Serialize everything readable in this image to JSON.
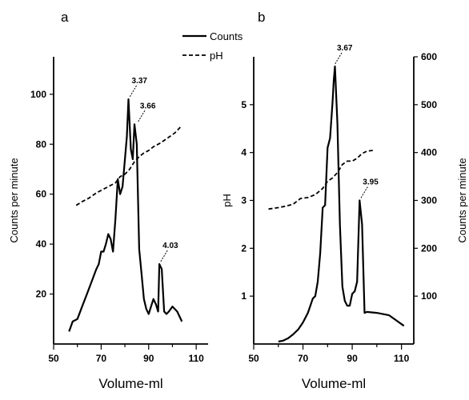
{
  "legend": {
    "entries": [
      {
        "label": "Counts",
        "style": "solid"
      },
      {
        "label": "pH",
        "style": "dashed"
      }
    ]
  },
  "chart_data": [
    {
      "panel": "a",
      "type": "line",
      "xlabel": "Volume-ml",
      "ylabel": "Counts per minute",
      "xlim": [
        50,
        115
      ],
      "ylim": [
        0,
        115
      ],
      "xticks": [
        50,
        70,
        90,
        110
      ],
      "yticks": [
        20,
        40,
        60,
        80,
        100
      ],
      "series": [
        {
          "name": "Counts",
          "axis": "left",
          "style": "solid",
          "x": [
            56.5,
            58,
            60,
            62,
            64,
            66,
            68,
            69,
            70,
            71,
            72,
            73,
            74,
            75,
            76,
            77,
            78,
            79,
            80,
            80.8,
            81.5,
            82.5,
            83.3,
            84,
            85,
            86,
            87,
            88,
            89,
            90,
            91,
            92,
            93,
            94,
            94.5,
            95.5,
            96.5,
            97.5,
            98.5,
            100,
            102,
            104
          ],
          "y": [
            5,
            9,
            10,
            15,
            20,
            25,
            30,
            32,
            37,
            37,
            40,
            44,
            42,
            37,
            50,
            66,
            60,
            63,
            74,
            83,
            98,
            78,
            74,
            88,
            80,
            38,
            28,
            18,
            14,
            12,
            15,
            18,
            16,
            13,
            32,
            30,
            13,
            12,
            13,
            15,
            13,
            9
          ]
        },
        {
          "name": "pH",
          "axis": "left",
          "style": "dashed",
          "x": [
            59.5,
            62,
            65,
            68,
            70,
            73,
            76,
            78,
            80,
            82,
            84,
            86,
            88,
            90,
            92,
            95,
            98,
            101,
            104
          ],
          "y": [
            55.5,
            57,
            58.5,
            60.5,
            61.5,
            63,
            64.5,
            67,
            68,
            70,
            73,
            75,
            76.5,
            77.5,
            79,
            80.5,
            82.5,
            84.5,
            87.5
          ]
        }
      ],
      "annotations": [
        {
          "text": "3.37",
          "x": 81.5,
          "y": 98
        },
        {
          "text": "3.66",
          "x": 85,
          "y": 88
        },
        {
          "text": "4.03",
          "x": 94.5,
          "y": 32
        }
      ]
    },
    {
      "panel": "b",
      "type": "line",
      "xlabel": "Volume-ml",
      "ylabel": "pH",
      "y2label": "Counts per minute",
      "xlim": [
        50,
        115
      ],
      "ylim": [
        0,
        6
      ],
      "y2lim": [
        0,
        600
      ],
      "xticks": [
        50,
        70,
        90,
        110
      ],
      "yticks": [
        1,
        2,
        3,
        4,
        5
      ],
      "y2ticks": [
        100,
        200,
        300,
        400,
        500,
        600
      ],
      "series": [
        {
          "name": "Counts",
          "axis": "right",
          "style": "solid",
          "x": [
            60,
            62,
            64,
            66,
            68,
            70,
            71,
            72,
            73,
            74,
            75,
            76,
            77,
            78,
            79,
            80,
            81,
            82,
            82.5,
            83,
            84,
            85,
            86,
            87,
            88,
            89,
            90,
            91,
            92,
            93,
            94,
            95,
            96,
            100,
            105,
            111
          ],
          "y": [
            5,
            7,
            12,
            20,
            30,
            45,
            55,
            65,
            80,
            95,
            100,
            130,
            190,
            285,
            290,
            410,
            430,
            505,
            550,
            580,
            460,
            250,
            120,
            90,
            80,
            80,
            105,
            110,
            130,
            300,
            250,
            65,
            67,
            65,
            60,
            38
          ]
        },
        {
          "name": "pH",
          "axis": "left",
          "style": "dashed",
          "x": [
            56,
            60,
            63,
            66,
            69,
            72,
            75,
            78,
            80,
            82,
            84,
            86,
            88,
            90,
            92,
            94,
            96,
            99
          ],
          "y": [
            2.82,
            2.85,
            2.88,
            2.92,
            3.04,
            3.06,
            3.12,
            3.25,
            3.4,
            3.47,
            3.58,
            3.75,
            3.82,
            3.82,
            3.88,
            3.98,
            4.03,
            4.05
          ]
        }
      ],
      "annotations": [
        {
          "text": "3.67",
          "x": 82.5,
          "y": 580,
          "axis": "right"
        },
        {
          "text": "3.95",
          "x": 93,
          "y": 300,
          "axis": "right"
        }
      ]
    }
  ]
}
